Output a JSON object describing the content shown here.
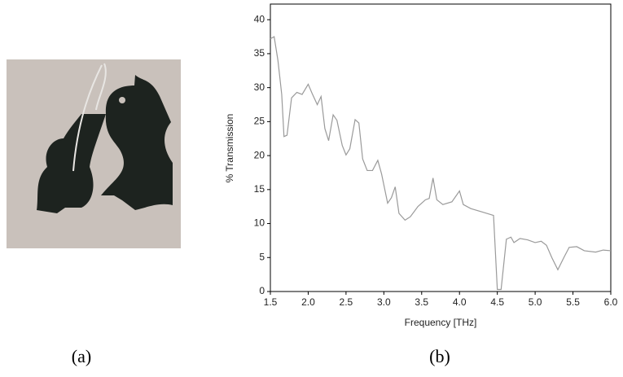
{
  "panel_labels": [
    "(a)",
    "(b)"
  ],
  "chart_data": {
    "type": "line",
    "xlabel": "Frequency [THz]",
    "ylabel": "% Transmission",
    "x": [
      1.5,
      1.55,
      1.6,
      1.65,
      1.68,
      1.72,
      1.78,
      1.85,
      1.92,
      2.0,
      2.05,
      2.12,
      2.17,
      2.22,
      2.27,
      2.33,
      2.38,
      2.45,
      2.5,
      2.55,
      2.62,
      2.67,
      2.72,
      2.78,
      2.85,
      2.92,
      2.97,
      3.05,
      3.1,
      3.15,
      3.2,
      3.28,
      3.35,
      3.45,
      3.55,
      3.6,
      3.65,
      3.7,
      3.78,
      3.9,
      4.0,
      4.05,
      4.15,
      4.3,
      4.45,
      4.5,
      4.55,
      4.62,
      4.68,
      4.72,
      4.8,
      4.9,
      5.0,
      5.08,
      5.15,
      5.22,
      5.3,
      5.38,
      5.45,
      5.55,
      5.65,
      5.8,
      5.9,
      6.0
    ],
    "values": [
      37.2,
      37.5,
      34,
      29,
      22.8,
      23,
      28.5,
      29.3,
      29,
      30.5,
      29.2,
      27.5,
      28.7,
      24,
      22.2,
      26,
      25.2,
      21.5,
      20.1,
      21,
      25.3,
      24.8,
      19.5,
      17.8,
      17.8,
      19.3,
      17.3,
      13,
      13.8,
      15.4,
      11.5,
      10.5,
      11,
      12.5,
      13.5,
      13.7,
      16.7,
      13.5,
      12.8,
      13.2,
      14.8,
      12.8,
      12.2,
      11.7,
      11.2,
      0.3,
      0.3,
      7.7,
      8,
      7.2,
      7.8,
      7.6,
      7.2,
      7.4,
      6.8,
      5,
      3.2,
      5,
      6.5,
      6.6,
      6,
      5.8,
      6.1,
      6
    ],
    "color": "#9a9a9a",
    "xlim": [
      1.5,
      6.0
    ],
    "xticks": [
      1.5,
      {
        "value": 2,
        "label": "2.0"
      },
      2.5,
      {
        "value": 3,
        "label": "3.0"
      },
      3.5,
      {
        "value": 4,
        "label": "4.0"
      },
      4.5,
      {
        "value": 5,
        "label": "5.0"
      },
      5.5,
      {
        "value": 6,
        "label": "6.0"
      }
    ],
    "ylim": [
      0,
      42.3
    ],
    "yticks": [
      0,
      5,
      10,
      15,
      20,
      25,
      30,
      35,
      40
    ]
  }
}
